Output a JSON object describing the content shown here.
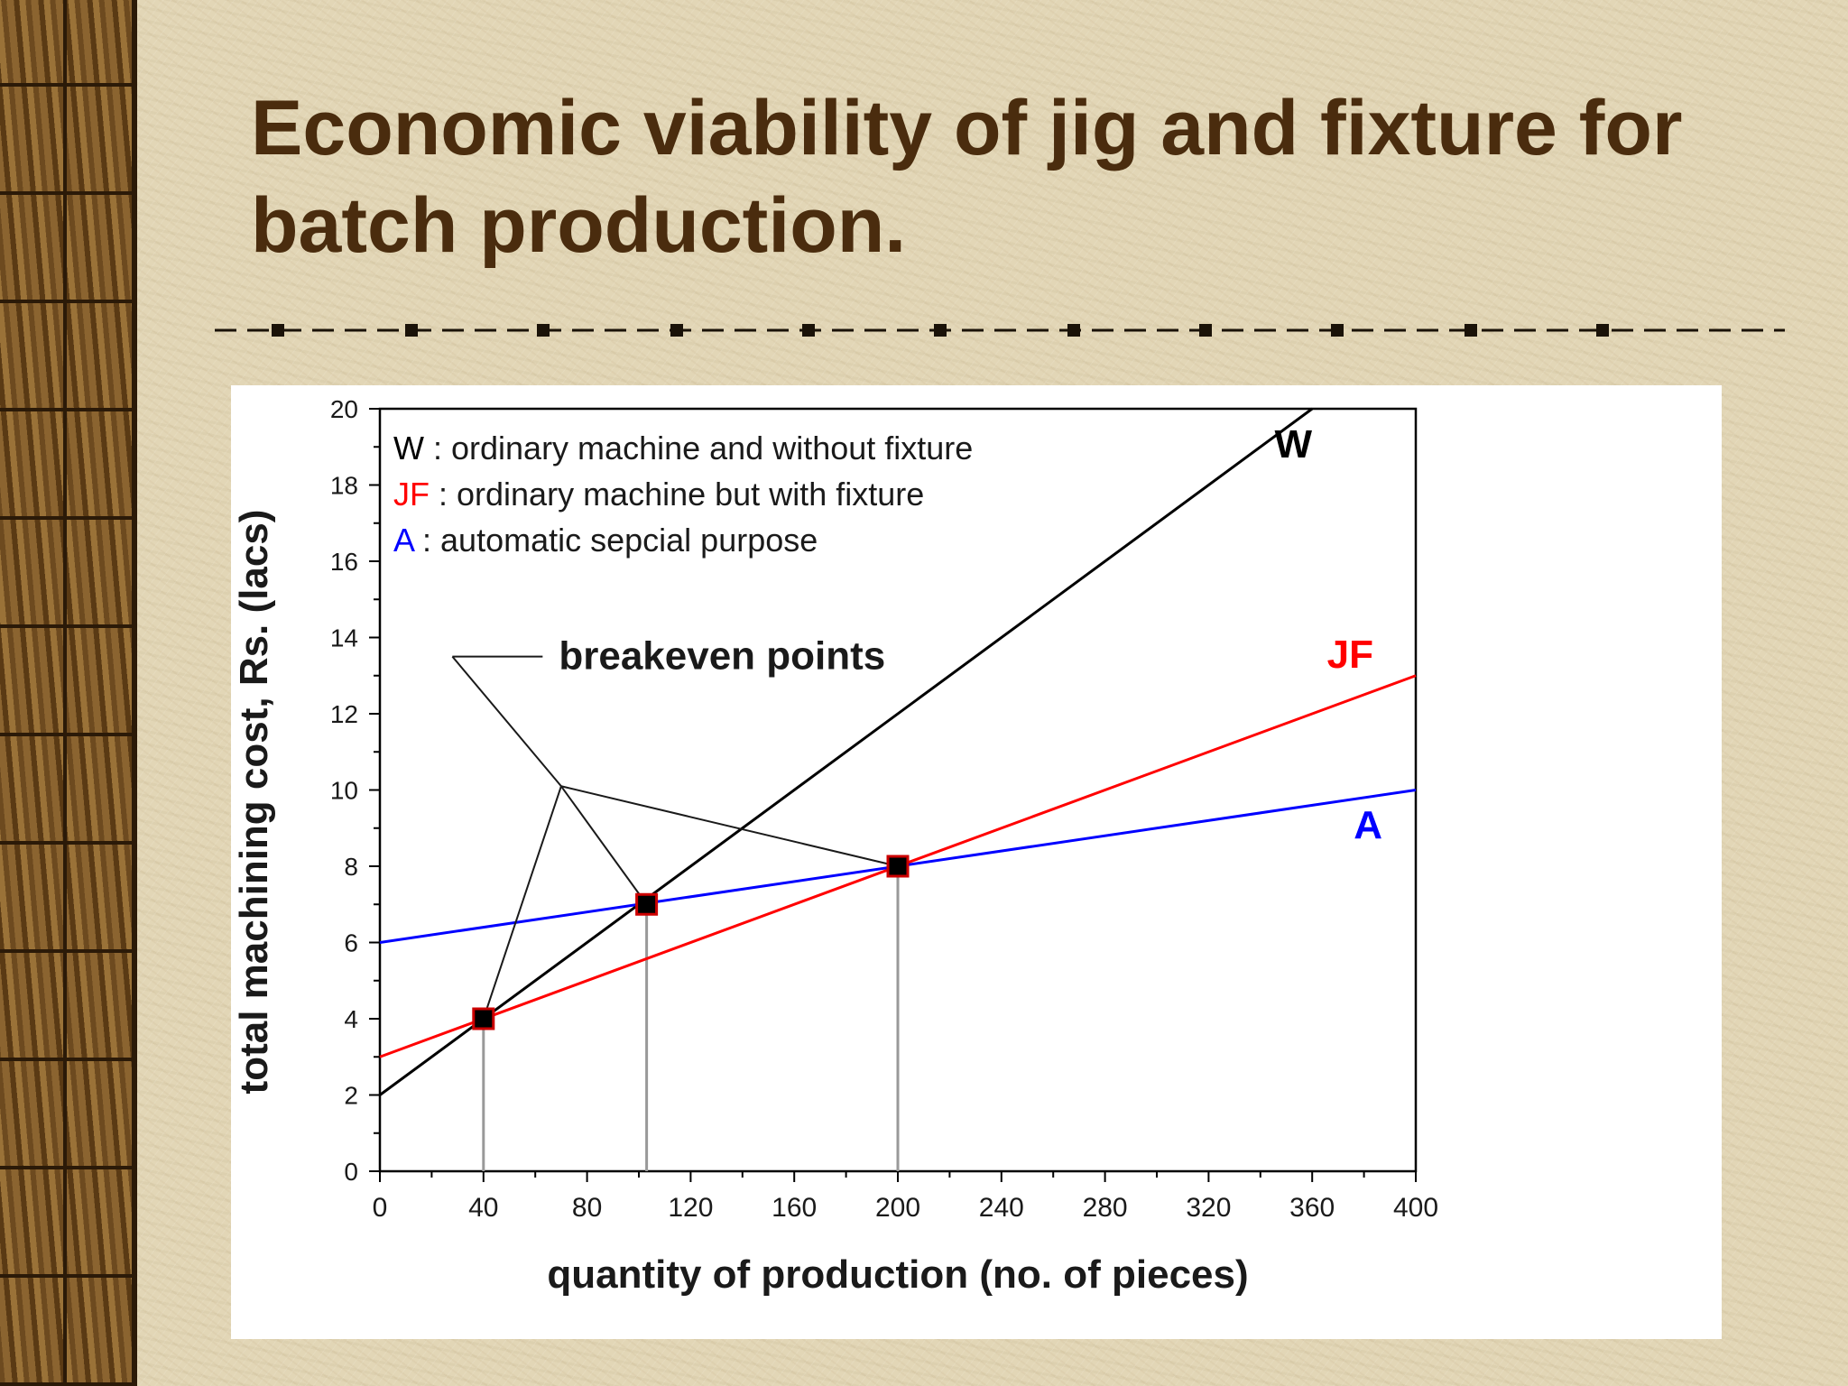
{
  "slide": {
    "title": "Economic viability of jig and fixture for batch production."
  },
  "colors": {
    "title": "#4a2c0e",
    "W": "#000000",
    "JF": "#ff0000",
    "A": "#0000ff",
    "marker_fill": "#000000",
    "marker_edge": "#cc0000"
  },
  "chart_data": {
    "type": "line",
    "xlabel": "quantity of production (no. of pieces)",
    "ylabel": "total machining cost, Rs. (lacs)",
    "xlim": [
      0,
      400
    ],
    "ylim": [
      0,
      20
    ],
    "xticks": [
      0,
      40,
      80,
      120,
      160,
      200,
      240,
      280,
      320,
      360,
      400
    ],
    "yticks": [
      0,
      2,
      4,
      6,
      8,
      10,
      12,
      14,
      16,
      18,
      20
    ],
    "grid": false,
    "series": [
      {
        "name": "W",
        "label": "W",
        "color": "#000000",
        "x": [
          0,
          360
        ],
        "y": [
          2,
          20
        ]
      },
      {
        "name": "JF",
        "label": "JF",
        "color": "#ff0000",
        "x": [
          0,
          400
        ],
        "y": [
          3,
          13
        ]
      },
      {
        "name": "A",
        "label": "A",
        "color": "#0000ff",
        "x": [
          0,
          400
        ],
        "y": [
          6,
          10
        ]
      }
    ],
    "breakeven_points": [
      {
        "x": 40,
        "y": 4
      },
      {
        "x": 103,
        "y": 7
      },
      {
        "x": 200,
        "y": 8
      }
    ],
    "legend": {
      "placement": "top-left",
      "entries": [
        {
          "key": "W",
          "sep": " : ",
          "text": "ordinary machine and without fixture",
          "color": "#000000"
        },
        {
          "key": "JF",
          "sep": " : ",
          "text": "ordinary machine but with fixture",
          "color": "#ff0000"
        },
        {
          "key": "A",
          "sep": " : ",
          "text": "automatic sepcial purpose",
          "color": "#0000ff"
        }
      ]
    },
    "annotation": {
      "text": "breakeven points",
      "vertex": {
        "x": 70,
        "y": 10.1
      },
      "label_anchor": {
        "x": 28,
        "y": 13.5
      }
    }
  }
}
